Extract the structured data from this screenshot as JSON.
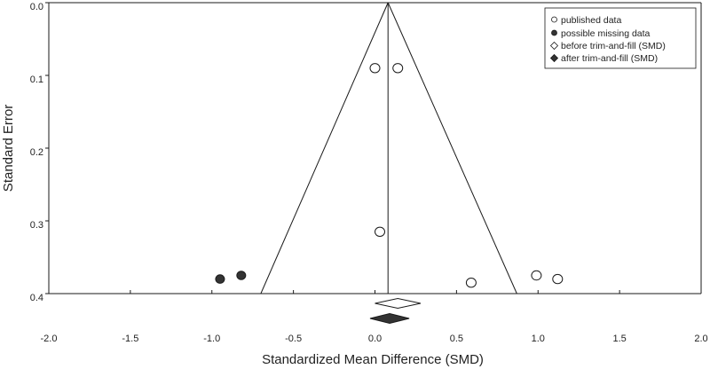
{
  "chart_data": {
    "type": "scatter",
    "subtype": "funnel-plot",
    "xlabel": "Standardized Mean Difference (SMD)",
    "ylabel": "Standard Error",
    "xlim": [
      -2.0,
      2.0
    ],
    "ylim": [
      0.0,
      0.4
    ],
    "y_reversed": true,
    "x_ticks": [
      -2.0,
      -1.5,
      -1.0,
      -0.5,
      0.0,
      0.5,
      1.0,
      1.5,
      2.0
    ],
    "x_tick_labels": [
      "-2.0",
      "-1.5",
      "-1.0",
      "-0.5",
      "0.0",
      "0.5",
      "1.0",
      "1.5",
      "2.0"
    ],
    "y_ticks": [
      0.0,
      0.1,
      0.2,
      0.3,
      0.4
    ],
    "y_tick_labels": [
      "0.0",
      "0.1",
      "0.2",
      "0.3",
      "0.4"
    ],
    "grid": false,
    "legend_position": "top-right",
    "legend": [
      {
        "key": "published",
        "label": "published data",
        "marker": "open-circle"
      },
      {
        "key": "missing",
        "label": "possible missing data",
        "marker": "filled-circle"
      },
      {
        "key": "before",
        "label": "before trim-and-fill (SMD)",
        "marker": "open-diamond"
      },
      {
        "key": "after",
        "label": "after trim-and-fill (SMD)",
        "marker": "filled-diamond"
      }
    ],
    "pooled_estimate": 0.08,
    "funnel_apex_se": 0.0,
    "funnel_base": {
      "se": 0.4,
      "x_left": -0.7,
      "x_right": 0.87
    },
    "series": [
      {
        "name": "published data",
        "points": [
          {
            "x": 0.0,
            "y": 0.09
          },
          {
            "x": 0.14,
            "y": 0.09
          },
          {
            "x": 0.03,
            "y": 0.315
          },
          {
            "x": 0.59,
            "y": 0.385
          },
          {
            "x": 0.99,
            "y": 0.375
          },
          {
            "x": 1.12,
            "y": 0.38
          }
        ]
      },
      {
        "name": "possible missing data",
        "points": [
          {
            "x": -0.95,
            "y": 0.38
          },
          {
            "x": -0.82,
            "y": 0.375
          }
        ]
      }
    ],
    "summary_estimates": [
      {
        "name": "before trim-and-fill (SMD)",
        "x": 0.14,
        "halfwidth": 0.14,
        "row": 1
      },
      {
        "name": "after trim-and-fill (SMD)",
        "x": 0.09,
        "halfwidth": 0.12,
        "row": 2
      }
    ],
    "colors": {
      "stroke": "#1a1a1a",
      "fill_dark": "#333333",
      "background": "#ffffff"
    }
  }
}
